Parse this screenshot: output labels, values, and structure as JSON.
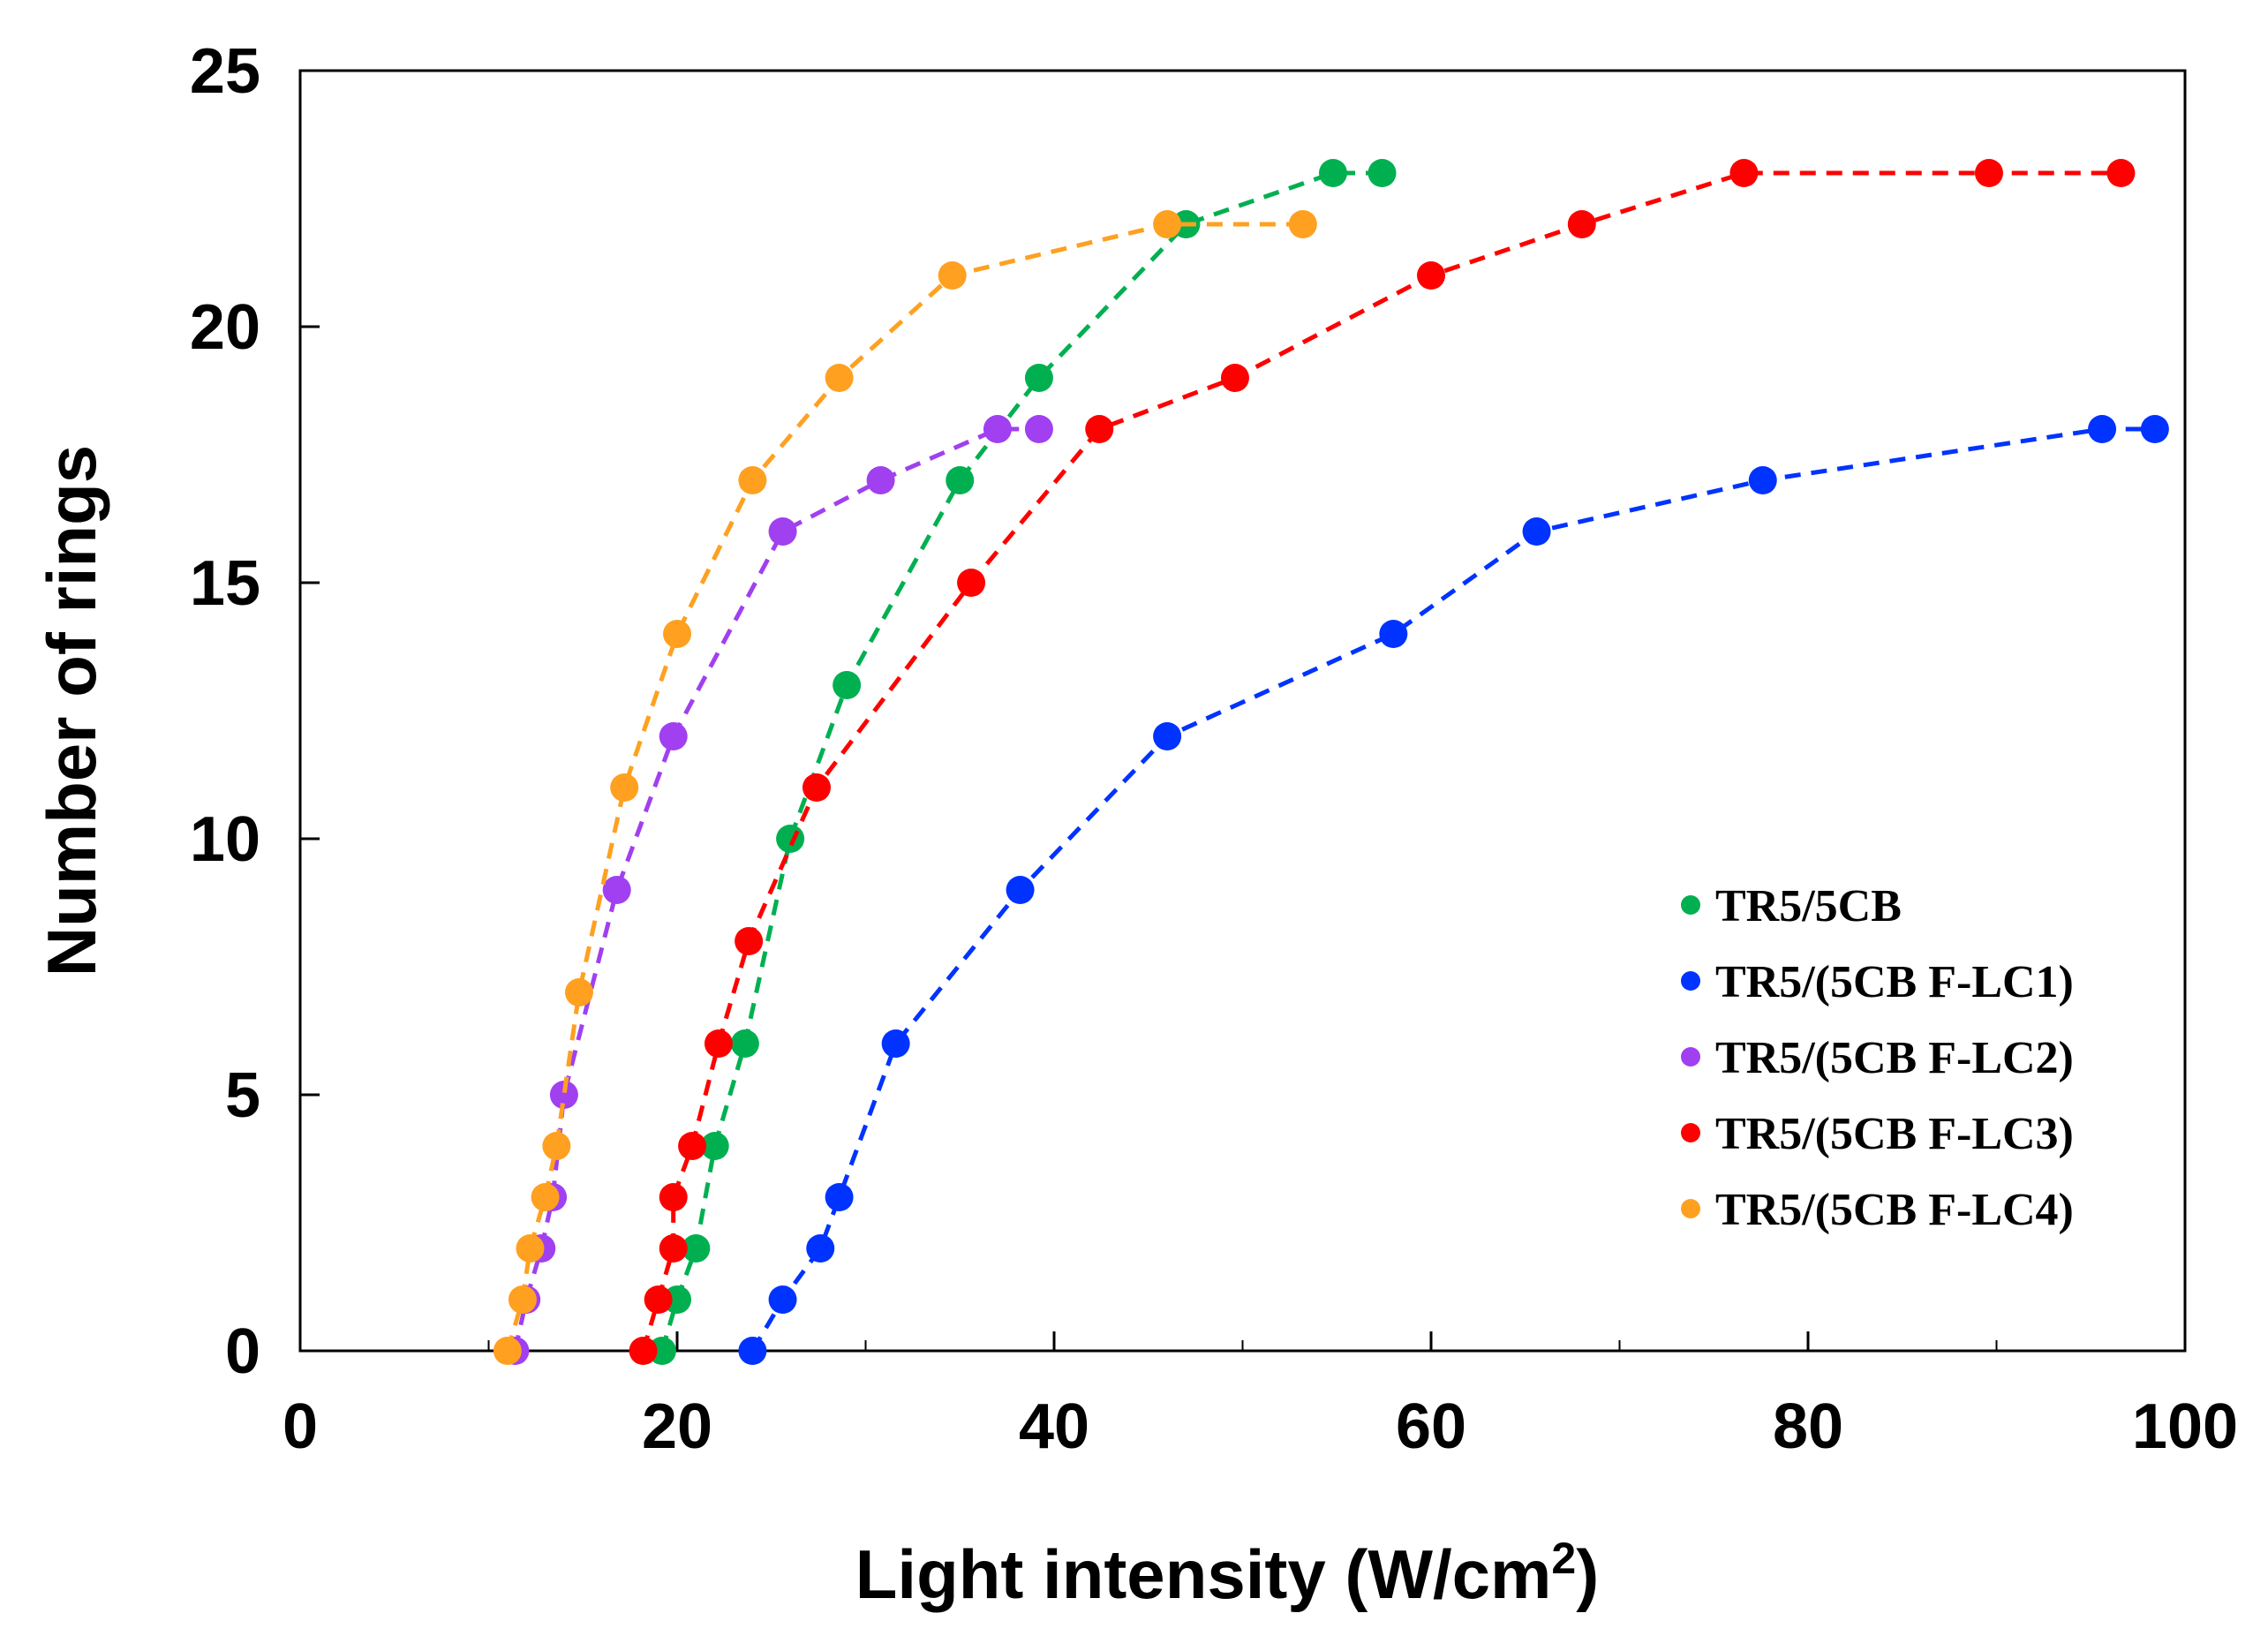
{
  "chart_data": {
    "type": "line",
    "title": "",
    "xlabel": "Light intensity (W/cm",
    "xlabel_superscript": "2",
    "xlabel_suffix": ")",
    "ylabel": "Number of rings",
    "xlim": [
      0,
      100
    ],
    "ylim": [
      0,
      25
    ],
    "x_ticks": [
      0,
      20,
      40,
      60,
      80,
      100
    ],
    "x_minor_ticks": [
      10,
      30,
      50,
      70,
      90
    ],
    "y_ticks": [
      0,
      5,
      10,
      15,
      20,
      25
    ],
    "x_tick_labels": [
      "0",
      "20",
      "40",
      "60",
      "80",
      "100"
    ],
    "y_tick_labels": [
      "0",
      "5",
      "10",
      "15",
      "20",
      "25"
    ],
    "grid": false,
    "legend_position": "bottom-right",
    "line_style": "dashed",
    "series": [
      {
        "name": "TR5/5CB",
        "color": "#00b050",
        "points": [
          [
            19.2,
            0
          ],
          [
            20.0,
            1
          ],
          [
            21.0,
            2
          ],
          [
            22.0,
            4
          ],
          [
            23.6,
            6
          ],
          [
            26.0,
            10
          ],
          [
            29.0,
            13
          ],
          [
            35.0,
            17
          ],
          [
            39.2,
            19
          ],
          [
            47.0,
            22
          ],
          [
            54.8,
            23
          ],
          [
            57.4,
            23
          ]
        ]
      },
      {
        "name": "TR5/(5CB F-LC1)",
        "color": "#0033ff",
        "points": [
          [
            24.0,
            0
          ],
          [
            25.6,
            1
          ],
          [
            27.6,
            2
          ],
          [
            28.6,
            3
          ],
          [
            31.6,
            6
          ],
          [
            38.2,
            9
          ],
          [
            46.0,
            12
          ],
          [
            58.0,
            14
          ],
          [
            65.6,
            16
          ],
          [
            77.6,
            17
          ],
          [
            95.6,
            18
          ],
          [
            98.4,
            18
          ]
        ]
      },
      {
        "name": "TR5/(5CB F-LC2)",
        "color": "#a040f0",
        "points": [
          [
            11.4,
            0
          ],
          [
            12.0,
            1
          ],
          [
            12.8,
            2
          ],
          [
            13.4,
            3
          ],
          [
            14.0,
            5
          ],
          [
            16.8,
            9
          ],
          [
            19.8,
            12
          ],
          [
            25.6,
            16
          ],
          [
            30.8,
            17
          ],
          [
            37.0,
            18
          ],
          [
            39.2,
            18
          ]
        ]
      },
      {
        "name": "TR5/(5CB F-LC3)",
        "color": "#ff0000",
        "points": [
          [
            18.2,
            0
          ],
          [
            19.0,
            1
          ],
          [
            19.8,
            2
          ],
          [
            19.8,
            3
          ],
          [
            20.8,
            4
          ],
          [
            22.2,
            6
          ],
          [
            23.8,
            8
          ],
          [
            27.4,
            11
          ],
          [
            35.6,
            15
          ],
          [
            42.4,
            18
          ],
          [
            49.6,
            19
          ],
          [
            60.0,
            21
          ],
          [
            68.0,
            22
          ],
          [
            76.6,
            23
          ],
          [
            89.6,
            23
          ],
          [
            96.6,
            23
          ]
        ]
      },
      {
        "name": "TR5/(5CB F-LC4)",
        "color": "#ffa020",
        "points": [
          [
            11.0,
            0
          ],
          [
            11.8,
            1
          ],
          [
            12.2,
            2
          ],
          [
            13.0,
            3
          ],
          [
            13.6,
            4
          ],
          [
            14.8,
            7
          ],
          [
            17.2,
            11
          ],
          [
            20.0,
            14
          ],
          [
            24.0,
            17
          ],
          [
            28.6,
            19
          ],
          [
            34.6,
            21
          ],
          [
            46.0,
            22
          ],
          [
            53.2,
            22
          ]
        ]
      }
    ]
  }
}
